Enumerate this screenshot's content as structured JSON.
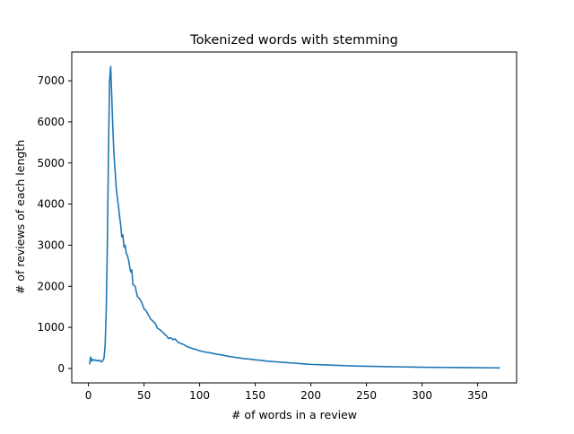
{
  "chart_data": {
    "type": "line",
    "title": "Tokenized words with stemming",
    "xlabel": "# of words in a review",
    "ylabel": "# of reviews of each length",
    "xlim": [
      -15,
      385
    ],
    "ylim": [
      -350,
      7700
    ],
    "xticks": [
      0,
      50,
      100,
      150,
      200,
      250,
      300,
      350
    ],
    "yticks": [
      0,
      1000,
      2000,
      3000,
      4000,
      5000,
      6000,
      7000
    ],
    "grid": false,
    "series": [
      {
        "color": "#1f77b4",
        "x": [
          1,
          2,
          3,
          4,
          5,
          6,
          7,
          8,
          9,
          10,
          11,
          12,
          13,
          14,
          15,
          16,
          17,
          18,
          19,
          20,
          21,
          22,
          23,
          24,
          25,
          26,
          27,
          28,
          29,
          30,
          31,
          32,
          33,
          34,
          35,
          36,
          37,
          38,
          39,
          40,
          42,
          44,
          46,
          48,
          50,
          52,
          54,
          56,
          58,
          60,
          62,
          64,
          66,
          68,
          70,
          72,
          74,
          76,
          78,
          80,
          82,
          84,
          86,
          88,
          90,
          92,
          94,
          96,
          98,
          100,
          105,
          110,
          115,
          120,
          125,
          130,
          135,
          140,
          145,
          150,
          155,
          160,
          165,
          170,
          175,
          180,
          185,
          190,
          195,
          200,
          210,
          220,
          230,
          240,
          250,
          260,
          270,
          280,
          290,
          300,
          310,
          320,
          330,
          340,
          350,
          360,
          370
        ],
        "y": [
          100,
          280,
          180,
          220,
          200,
          210,
          190,
          200,
          180,
          200,
          180,
          160,
          200,
          250,
          550,
          1400,
          3000,
          5200,
          7000,
          7350,
          6600,
          5800,
          5200,
          4800,
          4400,
          4150,
          3950,
          3700,
          3500,
          3200,
          3250,
          2950,
          3000,
          2800,
          2750,
          2650,
          2500,
          2350,
          2400,
          2050,
          2000,
          1750,
          1700,
          1600,
          1450,
          1400,
          1300,
          1200,
          1150,
          1100,
          980,
          950,
          900,
          850,
          800,
          730,
          750,
          700,
          720,
          650,
          620,
          600,
          580,
          540,
          520,
          500,
          480,
          470,
          450,
          430,
          400,
          380,
          350,
          330,
          300,
          280,
          260,
          240,
          230,
          210,
          200,
          180,
          170,
          160,
          150,
          140,
          130,
          120,
          110,
          100,
          90,
          80,
          70,
          60,
          55,
          50,
          45,
          40,
          35,
          30,
          28,
          26,
          24,
          22,
          20,
          18,
          15
        ]
      }
    ]
  }
}
